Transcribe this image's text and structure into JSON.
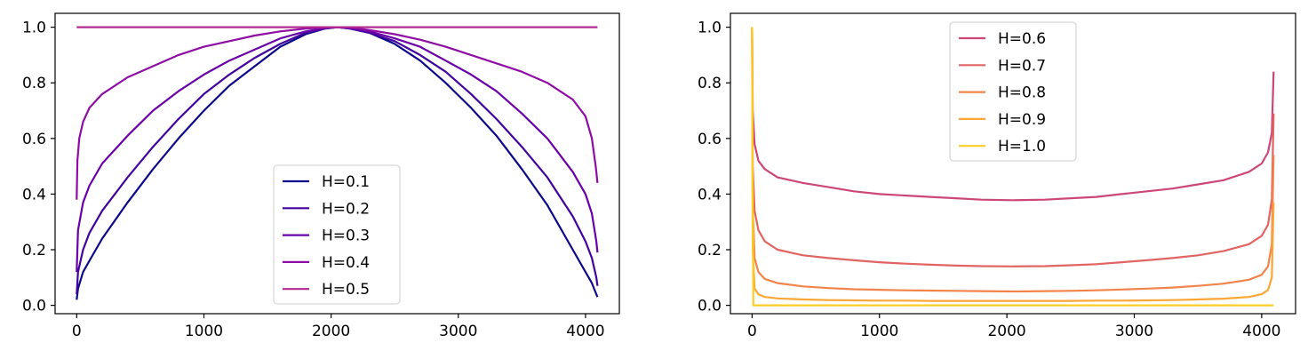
{
  "chart_data": [
    {
      "type": "line",
      "title": "",
      "xlabel": "",
      "ylabel": "",
      "xlim": [
        -170,
        4266
      ],
      "ylim": [
        -0.03,
        1.05
      ],
      "xticks": [
        0,
        1000,
        2000,
        3000,
        4000
      ],
      "yticks": [
        0.0,
        0.2,
        0.4,
        0.6,
        0.8,
        1.0
      ],
      "xtick_labels": [
        "0",
        "1000",
        "2000",
        "3000",
        "4000"
      ],
      "ytick_labels": [
        "0.0",
        "0.2",
        "0.4",
        "0.6",
        "0.8",
        "1.0"
      ],
      "grid": false,
      "legend_position": "bottom-center",
      "series": [
        {
          "name": "H=0.1",
          "color": "#0d0887",
          "x": [
            0,
            10,
            50,
            100,
            200,
            400,
            600,
            800,
            1000,
            1200,
            1400,
            1600,
            1800,
            1950,
            2047,
            2150,
            2300,
            2500,
            2700,
            2900,
            3100,
            3300,
            3500,
            3700,
            3900,
            4000,
            4050,
            4085,
            4094
          ],
          "y": [
            0.02,
            0.06,
            0.12,
            0.16,
            0.24,
            0.37,
            0.49,
            0.6,
            0.7,
            0.79,
            0.86,
            0.93,
            0.975,
            0.995,
            1.0,
            0.995,
            0.98,
            0.94,
            0.88,
            0.8,
            0.71,
            0.61,
            0.49,
            0.36,
            0.2,
            0.12,
            0.08,
            0.04,
            0.03
          ]
        },
        {
          "name": "H=0.2",
          "color": "#41049d",
          "x": [
            0,
            10,
            50,
            100,
            200,
            400,
            600,
            800,
            1000,
            1200,
            1400,
            1600,
            1800,
            1950,
            2047,
            2150,
            2300,
            2500,
            2700,
            2900,
            3100,
            3300,
            3500,
            3700,
            3900,
            4000,
            4050,
            4085,
            4094
          ],
          "y": [
            0.04,
            0.12,
            0.2,
            0.26,
            0.34,
            0.46,
            0.57,
            0.67,
            0.76,
            0.83,
            0.89,
            0.94,
            0.98,
            0.995,
            1.0,
            0.995,
            0.98,
            0.95,
            0.9,
            0.84,
            0.76,
            0.67,
            0.57,
            0.46,
            0.32,
            0.23,
            0.17,
            0.1,
            0.07
          ]
        },
        {
          "name": "H=0.3",
          "color": "#6a00a8",
          "x": [
            0,
            10,
            50,
            100,
            200,
            400,
            600,
            800,
            1000,
            1200,
            1400,
            1600,
            1800,
            1950,
            2047,
            2150,
            2300,
            2500,
            2700,
            2900,
            3100,
            3300,
            3500,
            3700,
            3900,
            4000,
            4050,
            4085,
            4094
          ],
          "y": [
            0.12,
            0.27,
            0.37,
            0.43,
            0.51,
            0.61,
            0.7,
            0.77,
            0.83,
            0.88,
            0.92,
            0.96,
            0.985,
            0.997,
            1.0,
            0.997,
            0.985,
            0.96,
            0.93,
            0.88,
            0.83,
            0.77,
            0.69,
            0.6,
            0.48,
            0.4,
            0.33,
            0.23,
            0.19
          ]
        },
        {
          "name": "H=0.4",
          "color": "#8f0da4",
          "x": [
            0,
            5,
            20,
            50,
            100,
            200,
            400,
            600,
            800,
            1000,
            1200,
            1400,
            1600,
            1800,
            1950,
            2047,
            2150,
            2300,
            2500,
            2700,
            2900,
            3100,
            3300,
            3500,
            3700,
            3900,
            4000,
            4050,
            4080,
            4094
          ],
          "y": [
            0.38,
            0.52,
            0.6,
            0.66,
            0.71,
            0.76,
            0.82,
            0.86,
            0.9,
            0.93,
            0.95,
            0.97,
            0.985,
            0.995,
            0.999,
            1.0,
            0.999,
            0.99,
            0.975,
            0.955,
            0.93,
            0.9,
            0.87,
            0.84,
            0.8,
            0.74,
            0.68,
            0.6,
            0.5,
            0.44
          ]
        },
        {
          "name": "H=0.5",
          "color": "#b12a90",
          "x": [
            0,
            4094
          ],
          "y": [
            1.0,
            1.0
          ]
        }
      ]
    },
    {
      "type": "line",
      "title": "",
      "xlabel": "",
      "ylabel": "",
      "xlim": [
        -170,
        4266
      ],
      "ylim": [
        -0.03,
        1.05
      ],
      "xticks": [
        0,
        1000,
        2000,
        3000,
        4000
      ],
      "yticks": [
        0.0,
        0.2,
        0.4,
        0.6,
        0.8,
        1.0
      ],
      "xtick_labels": [
        "0",
        "1000",
        "2000",
        "3000",
        "4000"
      ],
      "ytick_labels": [
        "0.0",
        "0.2",
        "0.4",
        "0.6",
        "0.8",
        "1.0"
      ],
      "grid": false,
      "legend_position": "top-center",
      "series": [
        {
          "name": "H=0.6",
          "color": "#cc4778",
          "x": [
            0,
            5,
            20,
            50,
            100,
            200,
            400,
            600,
            800,
            1000,
            1200,
            1400,
            1600,
            1800,
            2047,
            2300,
            2500,
            2700,
            2900,
            3100,
            3300,
            3500,
            3700,
            3900,
            4000,
            4050,
            4080,
            4094
          ],
          "y": [
            1.0,
            0.7,
            0.58,
            0.52,
            0.49,
            0.46,
            0.44,
            0.425,
            0.41,
            0.4,
            0.395,
            0.39,
            0.385,
            0.38,
            0.378,
            0.38,
            0.385,
            0.39,
            0.4,
            0.41,
            0.42,
            0.435,
            0.45,
            0.48,
            0.51,
            0.55,
            0.62,
            0.84
          ]
        },
        {
          "name": "H=0.7",
          "color": "#e16462",
          "x": [
            0,
            5,
            20,
            50,
            100,
            200,
            400,
            600,
            800,
            1000,
            1200,
            1400,
            1600,
            1800,
            2047,
            2300,
            2500,
            2700,
            2900,
            3100,
            3300,
            3500,
            3700,
            3900,
            4000,
            4050,
            4080,
            4094
          ],
          "y": [
            1.0,
            0.5,
            0.34,
            0.27,
            0.23,
            0.2,
            0.18,
            0.17,
            0.162,
            0.155,
            0.15,
            0.146,
            0.143,
            0.141,
            0.14,
            0.141,
            0.144,
            0.148,
            0.155,
            0.162,
            0.17,
            0.18,
            0.195,
            0.22,
            0.25,
            0.29,
            0.38,
            0.69
          ]
        },
        {
          "name": "H=0.8",
          "color": "#f2844b",
          "x": [
            0,
            5,
            20,
            50,
            100,
            200,
            400,
            600,
            800,
            1000,
            1200,
            1400,
            1600,
            1800,
            2047,
            2300,
            2500,
            2700,
            2900,
            3100,
            3300,
            3500,
            3700,
            3900,
            4000,
            4050,
            4080,
            4094
          ],
          "y": [
            1.0,
            0.35,
            0.17,
            0.12,
            0.095,
            0.08,
            0.068,
            0.062,
            0.058,
            0.056,
            0.054,
            0.053,
            0.052,
            0.051,
            0.05,
            0.051,
            0.052,
            0.054,
            0.057,
            0.06,
            0.064,
            0.07,
            0.078,
            0.092,
            0.11,
            0.14,
            0.22,
            0.54
          ]
        },
        {
          "name": "H=0.9",
          "color": "#fca636",
          "x": [
            0,
            5,
            20,
            50,
            100,
            200,
            400,
            600,
            800,
            1000,
            1200,
            1400,
            1600,
            1800,
            2047,
            2300,
            2500,
            2700,
            2900,
            3100,
            3300,
            3500,
            3700,
            3900,
            4000,
            4050,
            4080,
            4094
          ],
          "y": [
            1.0,
            0.2,
            0.06,
            0.04,
            0.03,
            0.025,
            0.021,
            0.019,
            0.018,
            0.017,
            0.017,
            0.016,
            0.016,
            0.016,
            0.016,
            0.016,
            0.016,
            0.017,
            0.017,
            0.018,
            0.019,
            0.021,
            0.024,
            0.03,
            0.04,
            0.055,
            0.1,
            0.37
          ]
        },
        {
          "name": "H=1.0",
          "color": "#fcce25",
          "x": [
            0,
            3,
            10,
            4094
          ],
          "y": [
            1.0,
            0.5,
            0.0,
            0.0
          ]
        }
      ]
    }
  ]
}
